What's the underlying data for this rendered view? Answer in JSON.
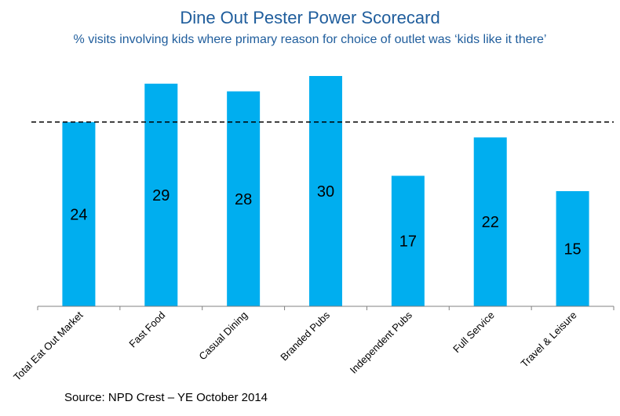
{
  "chart_data": {
    "type": "bar",
    "title": "Dine Out Pester Power Scorecard",
    "subtitle": "% visits involving kids where primary reason for choice of outlet was ‘kids like it there’",
    "categories": [
      "Total Eat Out Market",
      "Fast Food",
      "Casual Dining",
      "Branded Pubs",
      "Independent Pubs",
      "Full Service",
      "Travel & Leisure"
    ],
    "values": [
      24,
      29,
      28,
      30,
      17,
      22,
      15
    ],
    "reference_line": 24,
    "ylim": [
      0,
      32
    ],
    "bar_color": "#00aeef",
    "grid": false,
    "source": "Source: NPD Crest – YE October 2014"
  }
}
